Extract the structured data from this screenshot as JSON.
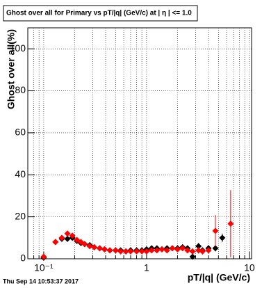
{
  "chart_data": {
    "type": "scatter",
    "title": "Ghost over all for Primary vs pT/|q| (GeV/c) at |  η | <= 1.0",
    "x_label": "pT/|q| (GeV/c)",
    "y_label": "Ghost over all(%)",
    "timestamp": "Thu Sep 14 10:53:37 2017",
    "log_x": true,
    "grid": true,
    "xlim": [
      0.07,
      10.5
    ],
    "ylim": [
      0,
      110
    ],
    "xticks": [
      {
        "value": 0.1,
        "label": "10⁻¹"
      },
      1,
      10
    ],
    "xminor": [
      0.07,
      0.08,
      0.09,
      0.2,
      0.3,
      0.4,
      0.5,
      0.6,
      0.7,
      0.8,
      0.9,
      2,
      3,
      4,
      5,
      6,
      7,
      8,
      9
    ],
    "yticks": [
      0,
      20,
      40,
      60,
      80,
      100
    ],
    "x": [
      0.1,
      0.13,
      0.15,
      0.17,
      0.19,
      0.21,
      0.23,
      0.25,
      0.28,
      0.31,
      0.35,
      0.39,
      0.44,
      0.5,
      0.56,
      0.63,
      0.7,
      0.8,
      0.9,
      1.0,
      1.12,
      1.26,
      1.41,
      1.58,
      1.78,
      2.0,
      2.24,
      2.5,
      2.8,
      3.2,
      3.5,
      4.0,
      4.67,
      5.45,
      6.57
    ],
    "series": [
      {
        "name": "black",
        "color": "#000000",
        "marker": "diamond",
        "values": [
          0.5,
          8,
          9.5,
          9.5,
          10,
          8.5,
          7.5,
          7,
          6.5,
          5.5,
          5,
          4.5,
          4,
          4,
          4,
          3.5,
          4,
          4,
          4,
          4.5,
          5,
          5,
          4.5,
          5,
          5,
          5,
          5.5,
          5,
          1,
          6,
          4,
          5,
          5,
          10,
          null
        ],
        "errors": [
          0.5,
          1,
          1,
          1,
          1,
          1,
          1,
          1,
          1,
          1,
          1,
          1,
          1,
          1,
          1,
          1,
          1,
          1,
          1,
          1,
          1,
          1,
          1,
          1,
          1,
          1,
          1,
          1,
          1,
          1.5,
          1.5,
          1.5,
          1.5,
          2,
          null
        ]
      },
      {
        "name": "red",
        "color": "#ff0000",
        "marker": "diamond",
        "values": [
          1,
          8,
          10,
          12,
          11,
          9,
          8,
          7,
          6,
          5.5,
          5,
          4.5,
          4,
          4,
          3.5,
          3.5,
          3.5,
          3.5,
          3.5,
          3.5,
          4,
          4,
          4.5,
          4,
          5,
          4.5,
          5,
          4,
          3.5,
          4,
          3.5,
          4,
          13.3,
          null,
          16.7
        ],
        "errors": [
          0.5,
          1,
          1,
          1,
          1,
          1,
          1,
          1,
          1,
          1,
          1,
          1,
          1,
          1,
          1,
          1,
          1,
          1,
          1,
          1,
          1,
          1,
          1,
          1,
          1,
          1,
          1,
          1,
          1,
          1.5,
          1.5,
          1.5,
          7.5,
          null,
          16
        ]
      }
    ]
  }
}
